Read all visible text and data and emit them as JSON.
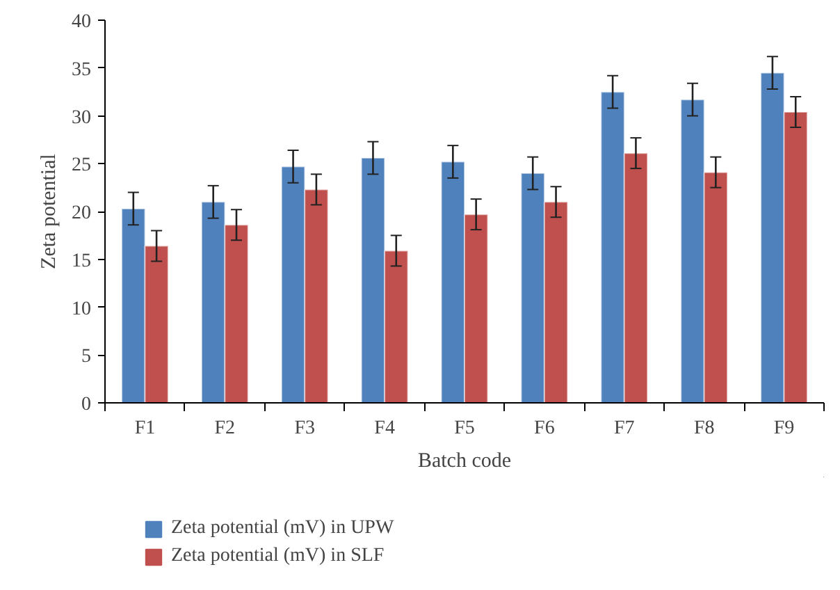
{
  "chart_data": {
    "type": "bar",
    "xlabel": "Batch code",
    "ylabel": "Zeta potential",
    "categories": [
      "F1",
      "F2",
      "F3",
      "F4",
      "F5",
      "F6",
      "F7",
      "F8",
      "F9"
    ],
    "series": [
      {
        "name": "Zeta potential (mV) in UPW",
        "color": "#4f81bd",
        "values": [
          20.3,
          21.0,
          24.7,
          25.6,
          25.2,
          24.0,
          32.5,
          31.7,
          34.5
        ],
        "errors": [
          1.7,
          1.7,
          1.7,
          1.7,
          1.7,
          1.7,
          1.7,
          1.7,
          1.7
        ]
      },
      {
        "name": "Zeta potential (mV) in SLF",
        "color": "#c0504d",
        "values": [
          16.4,
          18.6,
          22.3,
          15.9,
          19.7,
          21.0,
          26.1,
          24.1,
          30.4
        ],
        "errors": [
          1.6,
          1.6,
          1.6,
          1.6,
          1.6,
          1.6,
          1.6,
          1.6,
          1.6
        ]
      }
    ],
    "ylim": [
      0,
      40
    ],
    "yticks": [
      0,
      5,
      10,
      15,
      20,
      25,
      30,
      35,
      40
    ],
    "grid": false,
    "legend": "bottom"
  }
}
